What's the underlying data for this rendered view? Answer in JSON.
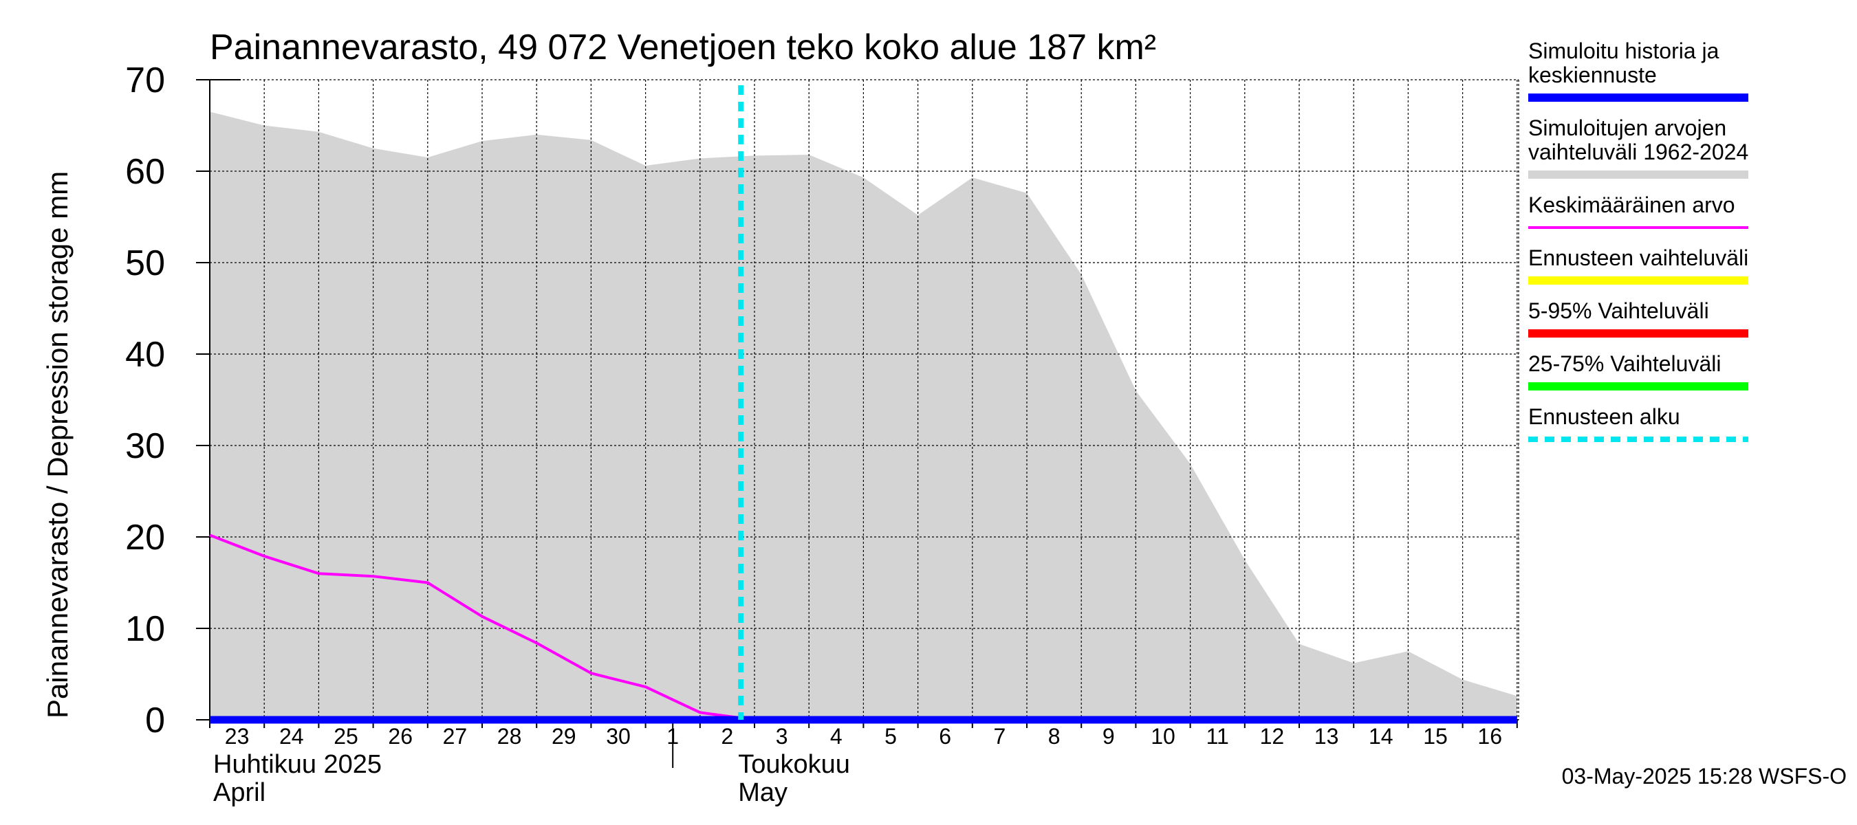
{
  "chart_data": {
    "type": "area",
    "title": "Painannevarasto, 49 072 Venetjoen teko koko alue 187 km²",
    "ylabel": "Painannevarasto / Depression storage    mm",
    "ylim": [
      0,
      70
    ],
    "y_ticks": [
      "0",
      "10",
      "20",
      "30",
      "40",
      "50",
      "60",
      "70"
    ],
    "x_labels": [
      "23",
      "24",
      "25",
      "26",
      "27",
      "28",
      "29",
      "30",
      "1",
      "2",
      "3",
      "4",
      "5",
      "6",
      "7",
      "8",
      "9",
      "10",
      "11",
      "12",
      "13",
      "14",
      "15",
      "16"
    ],
    "months": [
      {
        "fi": "Huhtikuu  2025",
        "en": "April"
      },
      {
        "fi": "Toukokuu",
        "en": "May"
      }
    ],
    "grid": true,
    "legend_position": "right",
    "range_upper": [
      66.5,
      65,
      64.3,
      62.5,
      61.5,
      63.3,
      64,
      63.4,
      60.6,
      61.4,
      61.7,
      61.8,
      59.3,
      55.2,
      59.3,
      57.6,
      48.7,
      36,
      28,
      17.5,
      8.3,
      6.2,
      7.5,
      4.4,
      2.6
    ],
    "series": [
      {
        "name": "Keskimääräinen arvo",
        "color": "#ff00ff",
        "values": [
          20.2,
          17.9,
          16,
          15.7,
          15,
          11.3,
          8.4,
          5.1,
          3.6,
          0.8,
          0,
          0,
          0,
          0,
          0,
          0,
          0,
          0,
          0,
          0,
          0,
          0,
          0,
          0,
          0
        ]
      },
      {
        "name": "Simuloitu historia ja keskiennuste",
        "color": "#0000ff",
        "values": [
          0,
          0,
          0,
          0,
          0,
          0,
          0,
          0,
          0,
          0,
          0,
          0,
          0,
          0,
          0,
          0,
          0,
          0,
          0,
          0,
          0,
          0,
          0,
          0,
          0
        ]
      }
    ],
    "forecast_start_index": 9.75
  },
  "legend": [
    {
      "lines": [
        "Simuloitu historia ja",
        "keskiennuste"
      ],
      "color": "#0000ff",
      "style": "solid"
    },
    {
      "lines": [
        "Simuloitujen arvojen",
        "vaihteluväli 1962-2024"
      ],
      "color": "#d4d4d4",
      "style": "solid"
    },
    {
      "lines": [
        "Keskimääräinen arvo"
      ],
      "color": "#ff00ff",
      "style": "thin"
    },
    {
      "lines": [
        "Ennusteen vaihteluväli"
      ],
      "color": "#ffff00",
      "style": "solid"
    },
    {
      "lines": [
        "5-95% Vaihteluväli"
      ],
      "color": "#ff0000",
      "style": "solid"
    },
    {
      "lines": [
        "25-75% Vaihteluväli"
      ],
      "color": "#00ff00",
      "style": "solid"
    },
    {
      "lines": [
        "Ennusteen alku"
      ],
      "color": "#00e5ee",
      "style": "dashed"
    }
  ],
  "timestamp": "03-May-2025 15:28 WSFS-O"
}
